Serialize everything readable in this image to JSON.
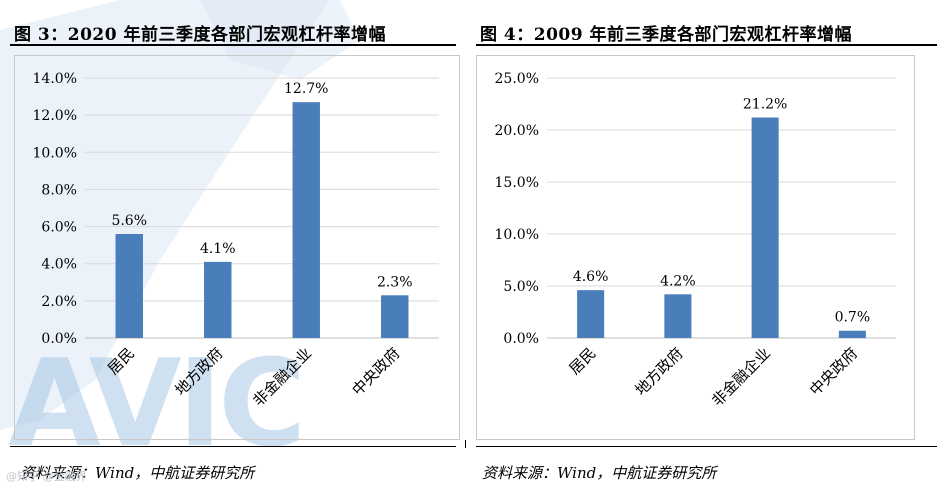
{
  "colors": {
    "bar": "#4a7ebb",
    "grid": "#d9d9d9",
    "watermark": "#a9c7e6"
  },
  "watermark_text": "AVIC",
  "brand_text": "@知乎 @金融界",
  "panels": [
    {
      "title": "图 3：2020 年前三季度各部门宏观杠杆率增幅",
      "source": "资料来源：Wind，中航证券研究所"
    },
    {
      "title": "图 4：2009 年前三季度各部门宏观杠杆率增幅",
      "source": "资料来源：Wind，中航证券研究所"
    }
  ],
  "chart_data": [
    {
      "type": "bar",
      "title": "图 3：2020 年前三季度各部门宏观杠杆率增幅",
      "categories": [
        "居民",
        "地方政府",
        "非金融企业",
        "中央政府"
      ],
      "values": [
        5.6,
        4.1,
        12.7,
        2.3
      ],
      "value_labels": [
        "5.6%",
        "4.1%",
        "12.7%",
        "2.3%"
      ],
      "ylim": [
        0,
        14
      ],
      "yticks": [
        "0.0%",
        "2.0%",
        "4.0%",
        "6.0%",
        "8.0%",
        "10.0%",
        "12.0%",
        "14.0%"
      ],
      "grid": true,
      "legend": "none"
    },
    {
      "type": "bar",
      "title": "图 4：2009 年前三季度各部门宏观杠杆率增幅",
      "categories": [
        "居民",
        "地方政府",
        "非金融企业",
        "中央政府"
      ],
      "values": [
        4.6,
        4.2,
        21.2,
        0.7
      ],
      "value_labels": [
        "4.6%",
        "4.2%",
        "21.2%",
        "0.7%"
      ],
      "ylim": [
        0,
        25
      ],
      "yticks": [
        "0.0%",
        "5.0%",
        "10.0%",
        "15.0%",
        "20.0%",
        "25.0%"
      ],
      "grid": true,
      "legend": "none"
    }
  ]
}
